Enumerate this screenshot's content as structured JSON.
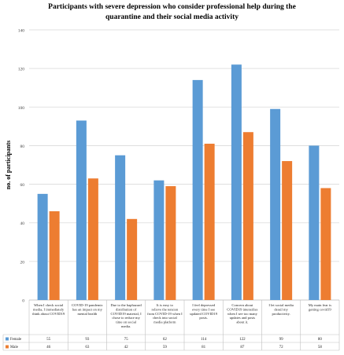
{
  "chart_data": {
    "type": "bar",
    "title": "Participants with  severe depression  who consider professional help during the\nquarantine  and their social media activity",
    "ylabel": "no. of participants",
    "ylim": [
      0,
      140
    ],
    "yticks": [
      0,
      20,
      40,
      60,
      80,
      100,
      120,
      140
    ],
    "grid": true,
    "legend": "table-left",
    "categories": [
      "When I check social media, I immediately think about COVID19",
      "COVID-19 pandemic has an impact on my mental health",
      "Due to the haphazard distribution of COVID19 material, I chose to reduce my time on social media.",
      "It is easy to relieve the tension from COVID-19 when I check into social media platform",
      "I feel depressed every time I see updated COVID19 posts.",
      "Concern about COVID19 intensifies when I see too many updates and posts about it.",
      "I let social media derail my productivity.",
      "My main fear is getting covid19"
    ],
    "series": [
      {
        "name": "Female",
        "color": "#5b9bd5",
        "values": [
          55,
          93,
          75,
          62,
          114,
          122,
          99,
          80
        ]
      },
      {
        "name": "Male",
        "color": "#ed7d31",
        "values": [
          46,
          63,
          42,
          59,
          81,
          87,
          72,
          58
        ]
      }
    ]
  }
}
